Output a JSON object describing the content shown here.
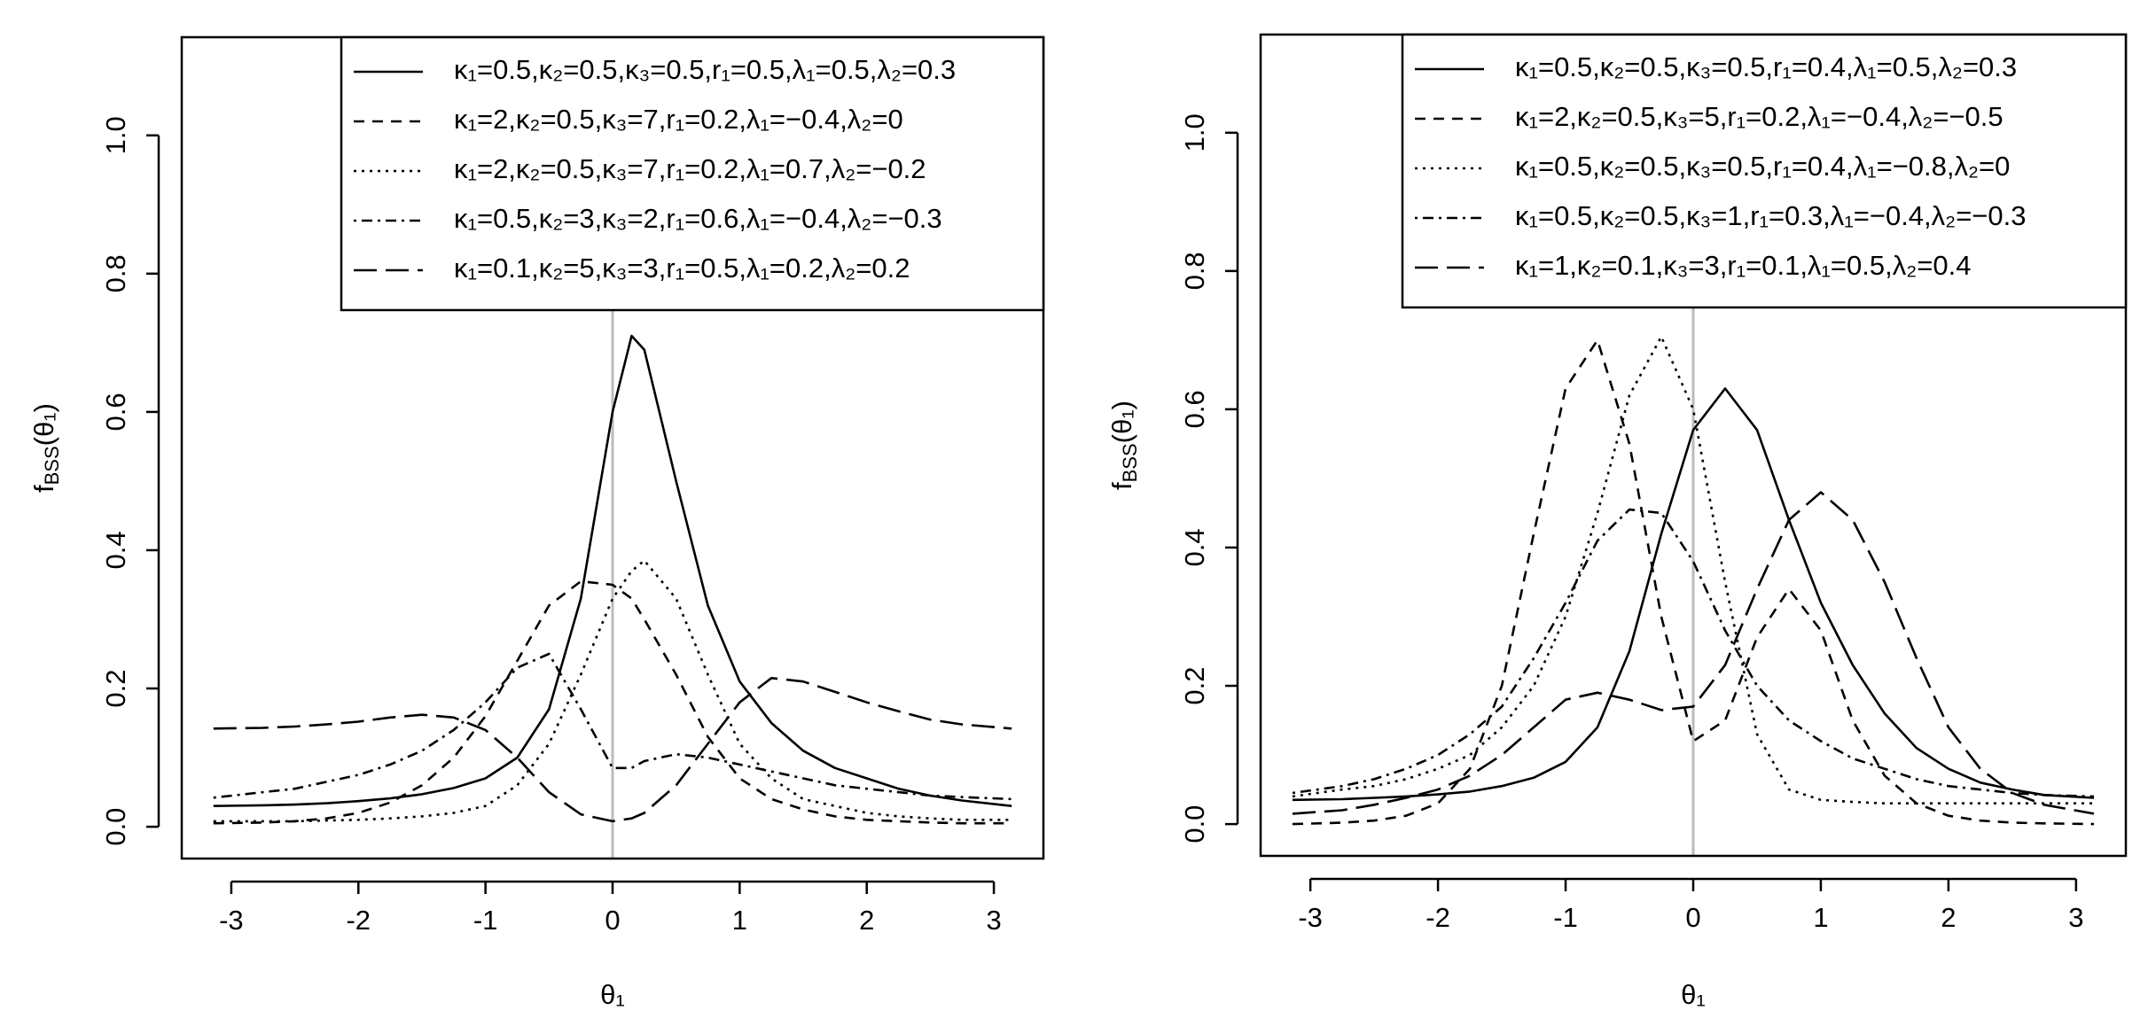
{
  "chart_data": [
    {
      "type": "line",
      "xlabel": "θ₁",
      "ylabel": [
        "f",
        "BSS",
        "(θ₁)"
      ],
      "xlim": [
        -3.39,
        3.39
      ],
      "ylim": [
        -0.046,
        1.142
      ],
      "xticks": [
        -3,
        -2,
        -1,
        0,
        1,
        2,
        3
      ],
      "yticks": [
        {
          "value": 0,
          "label": "0.0"
        },
        0.2,
        0.4,
        0.6,
        0.8,
        {
          "value": 1,
          "label": "1.0"
        }
      ],
      "vline": 0,
      "vline_color": "#bbbbbb",
      "legend": "topright",
      "x": [
        -3.14,
        -2.75,
        -2.5,
        -2.25,
        -2,
        -1.75,
        -1.5,
        -1.25,
        -1,
        -0.75,
        -0.5,
        -0.25,
        0,
        0.15,
        0.25,
        0.5,
        0.75,
        1,
        1.25,
        1.5,
        1.75,
        2,
        2.25,
        2.5,
        2.75,
        3.14
      ],
      "series": [
        {
          "name": "κ₁=0.5,κ₂=0.5,κ₃=0.5,r₁=0.5,λ₁=0.5,λ₂=0.3",
          "color": "#000000",
          "dash": "solid",
          "values": [
            0.03,
            0.031,
            0.032,
            0.034,
            0.037,
            0.041,
            0.047,
            0.056,
            0.07,
            0.1,
            0.17,
            0.33,
            0.6,
            0.71,
            0.69,
            0.5,
            0.32,
            0.21,
            0.15,
            0.11,
            0.085,
            0.07,
            0.055,
            0.045,
            0.038,
            0.03
          ]
        },
        {
          "name": "κ₁=2,κ₂=0.5,κ₃=7,r₁=0.2,λ₁=−0.4,λ₂=0",
          "color": "#000000",
          "dash": "dashed",
          "values": [
            0.005,
            0.006,
            0.008,
            0.012,
            0.02,
            0.035,
            0.06,
            0.1,
            0.16,
            0.24,
            0.32,
            0.355,
            0.35,
            0.33,
            0.3,
            0.22,
            0.13,
            0.07,
            0.04,
            0.025,
            0.015,
            0.01,
            0.008,
            0.006,
            0.005,
            0.005
          ]
        },
        {
          "name": "κ₁=2,κ₂=0.5,κ₃=7,r₁=0.2,λ₁=0.7,λ₂=−0.2",
          "color": "#000000",
          "dash": "dotted",
          "values": [
            0.008,
            0.008,
            0.008,
            0.009,
            0.01,
            0.012,
            0.015,
            0.02,
            0.03,
            0.06,
            0.12,
            0.22,
            0.33,
            0.37,
            0.385,
            0.33,
            0.22,
            0.12,
            0.07,
            0.04,
            0.03,
            0.02,
            0.015,
            0.012,
            0.01,
            0.01
          ]
        },
        {
          "name": "κ₁=0.5,κ₂=3,κ₃=2,r₁=0.6,λ₁=−0.4,λ₂=−0.3",
          "color": "#000000",
          "dash": "dotdash",
          "values": [
            0.042,
            0.05,
            0.055,
            0.065,
            0.075,
            0.09,
            0.11,
            0.14,
            0.18,
            0.23,
            0.25,
            0.17,
            0.085,
            0.085,
            0.095,
            0.105,
            0.1,
            0.09,
            0.08,
            0.07,
            0.06,
            0.055,
            0.05,
            0.045,
            0.043,
            0.04
          ]
        },
        {
          "name": "κ₁=0.1,κ₂=5,κ₃=3,r₁=0.5,λ₁=0.2,λ₂=0.2",
          "color": "#000000",
          "dash": "longdash",
          "values": [
            0.142,
            0.143,
            0.145,
            0.148,
            0.152,
            0.158,
            0.162,
            0.158,
            0.14,
            0.1,
            0.05,
            0.018,
            0.008,
            0.012,
            0.02,
            0.06,
            0.12,
            0.18,
            0.215,
            0.21,
            0.195,
            0.18,
            0.167,
            0.155,
            0.148,
            0.142
          ]
        }
      ]
    },
    {
      "type": "line",
      "xlabel": "θ₁",
      "ylabel": [
        "f",
        "BSS",
        "(θ₁)"
      ],
      "xlim": [
        -3.39,
        3.39
      ],
      "ylim": [
        -0.046,
        1.142
      ],
      "xticks": [
        -3,
        -2,
        -1,
        0,
        1,
        2,
        3
      ],
      "yticks": [
        {
          "value": 0,
          "label": "0.0"
        },
        0.2,
        0.4,
        0.6,
        0.8,
        {
          "value": 1,
          "label": "1.0"
        }
      ],
      "vline": 0,
      "vline_color": "#bbbbbb",
      "legend": "topright",
      "x": [
        -3.14,
        -2.75,
        -2.5,
        -2.25,
        -2,
        -1.75,
        -1.5,
        -1.25,
        -1,
        -0.75,
        -0.5,
        -0.25,
        0,
        0.25,
        0.5,
        0.75,
        1,
        1.25,
        1.5,
        1.75,
        2,
        2.25,
        2.5,
        2.75,
        3.14
      ],
      "series": [
        {
          "name": "κ₁=0.5,κ₂=0.5,κ₃=0.5,r₁=0.4,λ₁=0.5,λ₂=0.3",
          "color": "#000000",
          "dash": "solid",
          "values": [
            0.035,
            0.036,
            0.038,
            0.04,
            0.043,
            0.047,
            0.055,
            0.067,
            0.09,
            0.14,
            0.25,
            0.42,
            0.57,
            0.63,
            0.57,
            0.44,
            0.32,
            0.23,
            0.16,
            0.11,
            0.08,
            0.06,
            0.05,
            0.042,
            0.038
          ]
        },
        {
          "name": "κ₁=2,κ₂=0.5,κ₃=5,r₁=0.2,λ₁=−0.4,λ₂=−0.5",
          "color": "#000000",
          "dash": "dashed",
          "values": [
            0.0,
            0.002,
            0.005,
            0.012,
            0.03,
            0.08,
            0.2,
            0.42,
            0.63,
            0.7,
            0.55,
            0.3,
            0.12,
            0.15,
            0.27,
            0.34,
            0.28,
            0.15,
            0.07,
            0.03,
            0.012,
            0.005,
            0.002,
            0.001,
            0.0
          ]
        },
        {
          "name": "κ₁=0.5,κ₂=0.5,κ₃=0.5,r₁=0.4,λ₁=−0.8,λ₂=0",
          "color": "#000000",
          "dash": "dotted",
          "values": [
            0.04,
            0.05,
            0.055,
            0.065,
            0.08,
            0.1,
            0.14,
            0.2,
            0.3,
            0.45,
            0.62,
            0.705,
            0.6,
            0.35,
            0.13,
            0.05,
            0.035,
            0.032,
            0.03,
            0.03,
            0.03,
            0.03,
            0.03,
            0.03,
            0.03
          ]
        },
        {
          "name": "κ₁=0.5,κ₂=0.5,κ₃=1,r₁=0.3,λ₁=−0.4,λ₂=−0.3",
          "color": "#000000",
          "dash": "dotdash",
          "values": [
            0.045,
            0.055,
            0.065,
            0.08,
            0.1,
            0.13,
            0.17,
            0.24,
            0.32,
            0.41,
            0.455,
            0.45,
            0.38,
            0.28,
            0.2,
            0.15,
            0.12,
            0.095,
            0.08,
            0.065,
            0.055,
            0.05,
            0.045,
            0.042,
            0.04
          ]
        },
        {
          "name": "κ₁=1,κ₂=0.1,κ₃=3,r₁=0.1,λ₁=0.5,λ₂=0.4",
          "color": "#000000",
          "dash": "longdash",
          "values": [
            0.015,
            0.02,
            0.028,
            0.038,
            0.05,
            0.07,
            0.1,
            0.14,
            0.18,
            0.19,
            0.18,
            0.165,
            0.17,
            0.23,
            0.34,
            0.44,
            0.48,
            0.44,
            0.35,
            0.24,
            0.14,
            0.08,
            0.045,
            0.028,
            0.015
          ]
        }
      ]
    }
  ]
}
